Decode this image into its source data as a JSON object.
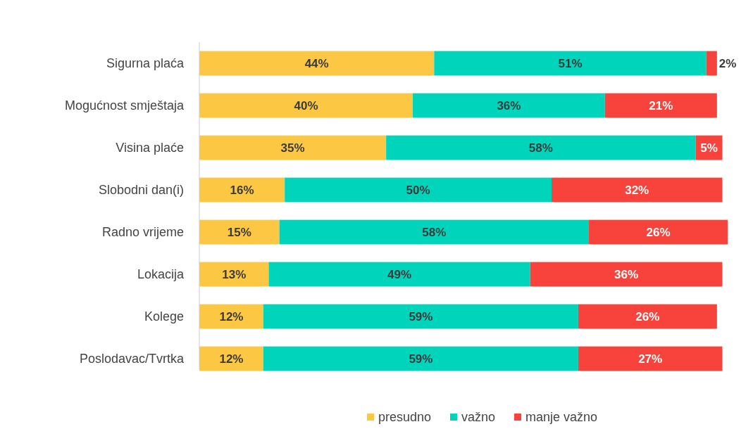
{
  "chart_data": {
    "type": "bar",
    "orientation": "horizontal",
    "stacked": true,
    "tick_labels": "y",
    "legend": "bottom",
    "categories": [
      "Sigurna plaća",
      "Mogućnost smještaja",
      "Visina plaće",
      "Slobodni dan(i)",
      "Radno vrijeme",
      "Lokacija",
      "Kolege",
      "Poslodavac/Tvrtka"
    ],
    "series": [
      {
        "name": "presudno",
        "color": "#fcc843",
        "values": [
          44,
          40,
          35,
          16,
          15,
          13,
          12,
          12
        ],
        "value_labels": [
          "44%",
          "40%",
          "35%",
          "16%",
          "15%",
          "13%",
          "12%",
          "12%"
        ]
      },
      {
        "name": "važno",
        "color": "#00d4bb",
        "values": [
          51,
          36,
          58,
          50,
          58,
          49,
          59,
          59
        ],
        "value_labels": [
          "51%",
          "36%",
          "58%",
          "50%",
          "58%",
          "49%",
          "59%",
          "59%"
        ]
      },
      {
        "name": "manje važno",
        "color": "#f7433b",
        "values": [
          2,
          21,
          5,
          32,
          26,
          36,
          26,
          27
        ],
        "value_labels": [
          "2%",
          "21%",
          "5%",
          "32%",
          "26%",
          "36%",
          "26%",
          "27%"
        ]
      }
    ]
  }
}
